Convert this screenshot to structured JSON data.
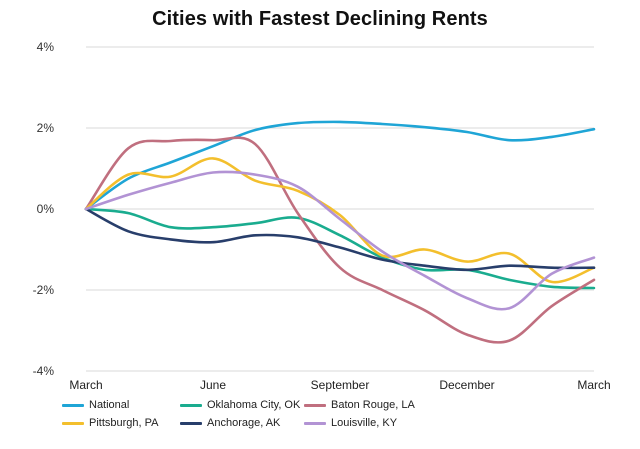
{
  "chart_data": {
    "type": "line",
    "title": "Cities with Fastest Declining Rents",
    "xlabel": "",
    "ylabel": "",
    "ylim": [
      -4,
      4
    ],
    "yticks": [
      4,
      2,
      0,
      -2,
      -4
    ],
    "ytick_labels": [
      "4%",
      "2%",
      "0%",
      "-2%",
      "-4%"
    ],
    "x_tick_labels": [
      {
        "label": "March",
        "x": 0
      },
      {
        "label": "June",
        "x": 3
      },
      {
        "label": "September",
        "x": 6
      },
      {
        "label": "December",
        "x": 9
      },
      {
        "label": "March",
        "x": 12
      }
    ],
    "x_range": [
      0,
      12
    ],
    "grid": true,
    "legend_position": "bottom-left",
    "series": [
      {
        "name": "National",
        "color": "#1fa5d6",
        "x": [
          0,
          1,
          2,
          3,
          4,
          5,
          6,
          7,
          8,
          9,
          10,
          11,
          12
        ],
        "values": [
          0,
          0.75,
          1.15,
          1.55,
          1.95,
          2.12,
          2.15,
          2.1,
          2.02,
          1.9,
          1.7,
          1.78,
          1.97
        ]
      },
      {
        "name": "Oklahoma City, OK",
        "color": "#1aac8f",
        "x": [
          0,
          1,
          2,
          3,
          4,
          5,
          6,
          7,
          8,
          9,
          10,
          11,
          12
        ],
        "values": [
          0,
          -0.1,
          -0.45,
          -0.45,
          -0.35,
          -0.22,
          -0.65,
          -1.2,
          -1.5,
          -1.5,
          -1.75,
          -1.92,
          -1.95
        ]
      },
      {
        "name": "Baton Rouge, LA",
        "color": "#c06f7f",
        "x": [
          0,
          1,
          2,
          3,
          4,
          5,
          6,
          7,
          8,
          9,
          10,
          11,
          12
        ],
        "values": [
          0,
          1.5,
          1.68,
          1.7,
          1.6,
          -0.1,
          -1.45,
          -2.0,
          -2.5,
          -3.1,
          -3.25,
          -2.4,
          -1.75
        ]
      },
      {
        "name": "Pittsburgh, PA",
        "color": "#f3bf2d",
        "x": [
          0,
          1,
          2,
          3,
          4,
          5,
          6,
          7,
          8,
          9,
          10,
          11,
          12
        ],
        "values": [
          0,
          0.85,
          0.8,
          1.25,
          0.7,
          0.45,
          -0.15,
          -1.15,
          -1.0,
          -1.3,
          -1.1,
          -1.8,
          -1.45
        ]
      },
      {
        "name": "Anchorage, AK",
        "color": "#283e6b",
        "x": [
          0,
          1,
          2,
          3,
          4,
          5,
          6,
          7,
          8,
          9,
          10,
          11,
          12
        ],
        "values": [
          0,
          -0.55,
          -0.75,
          -0.82,
          -0.65,
          -0.7,
          -0.95,
          -1.25,
          -1.4,
          -1.5,
          -1.4,
          -1.45,
          -1.45
        ]
      },
      {
        "name": "Louisville, KY",
        "color": "#b293d4",
        "x": [
          0,
          1,
          2,
          3,
          4,
          5,
          6,
          7,
          8,
          9,
          10,
          11,
          12
        ],
        "values": [
          0,
          0.35,
          0.65,
          0.9,
          0.85,
          0.55,
          -0.25,
          -1.05,
          -1.65,
          -2.2,
          -2.45,
          -1.6,
          -1.2
        ]
      }
    ]
  }
}
